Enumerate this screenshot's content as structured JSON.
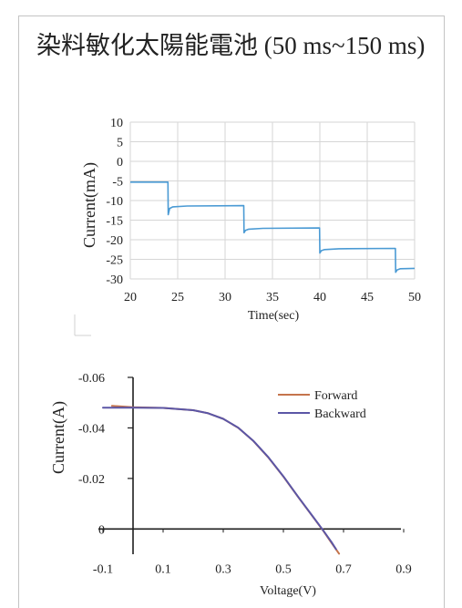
{
  "slide": {
    "title": "染料敏化太陽能電池 (50 ms~150 ms)"
  },
  "colors": {
    "grid": "#d6d6d6",
    "axis": "#1e1e1e",
    "step_line": "#4a9ad4",
    "forward": "#c5744c",
    "backward": "#5b56a6"
  },
  "chart_data": [
    {
      "type": "line",
      "title": "",
      "xlabel": "Time(sec)",
      "ylabel": "Current(mA)",
      "xlim": [
        20,
        50
      ],
      "ylim": [
        -30,
        10
      ],
      "xticks": [
        20,
        25,
        30,
        35,
        40,
        45,
        50
      ],
      "yticks": [
        10,
        5,
        0,
        -5,
        -10,
        -15,
        -20,
        -25,
        -30
      ],
      "grid": true,
      "legend": "none",
      "series": [
        {
          "x": [
            20,
            23.97,
            24.0,
            24.15,
            24.5,
            26,
            31.97,
            32.0,
            32.15,
            32.5,
            34,
            39.97,
            40.0,
            40.15,
            40.5,
            42,
            47.97,
            48.0,
            48.15,
            48.5,
            50
          ],
          "y": [
            -5.3,
            -5.3,
            -13.6,
            -12.0,
            -11.6,
            -11.4,
            -11.3,
            -18.2,
            -17.6,
            -17.3,
            -17.1,
            -17.0,
            -23.4,
            -22.8,
            -22.5,
            -22.3,
            -22.2,
            -28.3,
            -27.7,
            -27.4,
            -27.3
          ]
        }
      ]
    },
    {
      "type": "line",
      "title": "",
      "xlabel": "Voltage(V)",
      "ylabel": "Current(A)",
      "xlim": [
        -0.1,
        0.9
      ],
      "ylim": [
        -0.06,
        0.01
      ],
      "y_inverted": true,
      "xticks": [
        -0.1,
        0.1,
        0.3,
        0.5,
        0.7,
        0.9
      ],
      "yticks": [
        -0.06,
        -0.04,
        -0.02,
        0
      ],
      "grid": false,
      "legend": "top-right",
      "series": [
        {
          "name": "Forward",
          "x": [
            -0.07,
            0,
            0.1,
            0.2,
            0.25,
            0.3,
            0.35,
            0.4,
            0.45,
            0.5,
            0.55,
            0.6,
            0.63,
            0.66,
            0.685
          ],
          "y": [
            -0.0487,
            -0.0482,
            -0.0479,
            -0.047,
            -0.0458,
            -0.0436,
            -0.04,
            -0.0348,
            -0.0283,
            -0.0207,
            -0.0125,
            -0.0045,
            0.0003,
            0.0055,
            0.0098
          ]
        },
        {
          "name": "Backward",
          "x": [
            -0.1,
            0,
            0.1,
            0.2,
            0.25,
            0.3,
            0.35,
            0.4,
            0.45,
            0.5,
            0.55,
            0.6,
            0.63,
            0.66,
            0.675
          ],
          "y": [
            -0.048,
            -0.048,
            -0.0479,
            -0.047,
            -0.0458,
            -0.0436,
            -0.0401,
            -0.0349,
            -0.0284,
            -0.0208,
            -0.0126,
            -0.0046,
            0.0002,
            0.0052,
            0.008
          ]
        }
      ]
    }
  ]
}
